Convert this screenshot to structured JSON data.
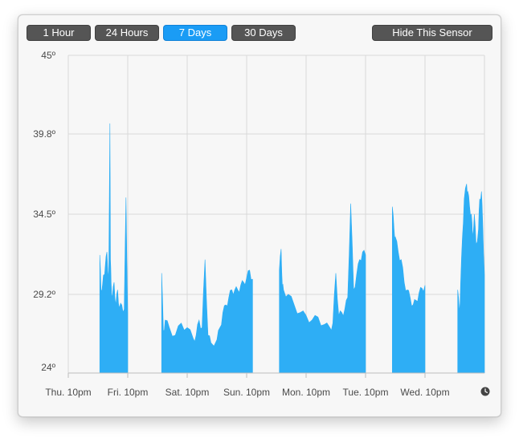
{
  "toolbar": {
    "range_buttons": [
      {
        "label": "1 Hour",
        "active": false
      },
      {
        "label": "24 Hours",
        "active": false
      },
      {
        "label": "7 Days",
        "active": true
      },
      {
        "label": "30 Days",
        "active": false
      }
    ],
    "hide_label": "Hide This Sensor",
    "button_color": "#555555",
    "active_color": "#1a9cf5"
  },
  "clock_icon": "clock-icon",
  "chart_data": {
    "type": "area",
    "x_ticks": [
      "Thu. 10pm",
      "Fri. 10pm",
      "Sat. 10pm",
      "Sun. 10pm",
      "Mon. 10pm",
      "Tue. 10pm",
      "Wed. 10pm"
    ],
    "y_ticks": [
      "24º",
      "29.2º",
      "34.5º",
      "39.8º",
      "45º"
    ],
    "y_tick_values": [
      24,
      29.2,
      34.5,
      39.8,
      45
    ],
    "ylim": [
      24,
      45
    ],
    "xlim_days": [
      0,
      7
    ],
    "grid": true,
    "fill_color": "#2eaef5",
    "segments": [
      {
        "x": [
          0.53,
          0.55,
          0.58,
          0.6,
          0.62,
          0.65,
          0.68,
          0.7,
          0.71,
          0.72,
          0.74,
          0.77,
          0.8,
          0.83,
          0.86,
          0.9,
          0.94,
          0.97,
          1.0
        ],
        "y": [
          31.8,
          29.5,
          30.0,
          30.5,
          31.0,
          32.0,
          30.2,
          40.5,
          31.5,
          30.0,
          29.0,
          30.0,
          28.5,
          29.5,
          28.3,
          28.5,
          28.2,
          35.6,
          28.0
        ]
      },
      {
        "x": [
          1.57,
          1.6,
          1.63,
          1.7,
          1.8,
          1.9,
          2.0,
          2.1,
          2.15,
          2.2,
          2.25,
          2.3,
          2.35,
          2.4,
          2.5,
          2.55,
          2.6,
          2.65,
          2.7,
          2.75,
          2.8,
          2.85,
          2.9,
          2.95,
          3.0,
          3.05,
          3.1
        ],
        "y": [
          30.6,
          26.8,
          27.5,
          27.0,
          26.5,
          27.3,
          27.0,
          26.3,
          26.5,
          27.5,
          27.0,
          31.5,
          26.5,
          26.0,
          26.2,
          27.0,
          28.0,
          28.5,
          29.0,
          29.5,
          29.5,
          29.5,
          29.8,
          30.0,
          30.3,
          30.8,
          30.2
        ]
      },
      {
        "x": [
          3.55,
          3.58,
          3.6,
          3.62,
          3.7,
          3.8,
          3.9,
          4.0,
          4.1,
          4.2,
          4.3,
          4.4,
          4.45,
          4.5,
          4.55,
          4.6,
          4.65,
          4.7,
          4.75,
          4.8,
          4.85,
          4.9,
          4.95,
          5.0
        ],
        "y": [
          30.8,
          32.2,
          29.8,
          29.5,
          29.2,
          28.5,
          28.0,
          27.8,
          27.5,
          27.7,
          27.2,
          27.0,
          27.3,
          30.6,
          27.8,
          28.0,
          28.2,
          29.0,
          35.2,
          29.5,
          30.5,
          31.5,
          32.0,
          31.8
        ]
      },
      {
        "x": [
          5.45,
          5.48,
          5.5,
          5.55,
          5.6,
          5.65,
          5.7,
          5.75,
          5.8,
          5.85,
          5.9,
          5.95,
          6.0
        ],
        "y": [
          35.0,
          33.5,
          33.0,
          32.0,
          31.5,
          30.0,
          29.5,
          29.0,
          28.5,
          28.8,
          29.3,
          29.6,
          29.8
        ]
      },
      {
        "x": [
          6.55,
          6.58,
          6.6,
          6.63,
          6.66,
          6.7,
          6.72,
          6.75,
          6.78,
          6.8,
          6.83,
          6.86,
          6.9,
          6.92,
          6.95,
          6.97,
          7.0
        ],
        "y": [
          29.5,
          28.0,
          30.0,
          33.0,
          35.5,
          36.5,
          36.0,
          35.0,
          34.5,
          33.0,
          34.5,
          32.5,
          33.5,
          35.5,
          36.0,
          34.0,
          30.5
        ]
      }
    ]
  }
}
